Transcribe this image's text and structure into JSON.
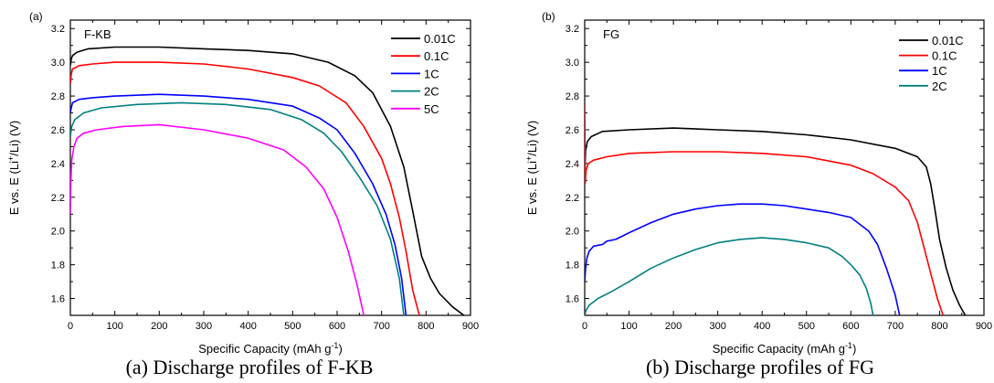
{
  "captions": [
    "(a) Discharge profiles of F-KB",
    "(b) Discharge profiles of FG"
  ],
  "chart_data": [
    {
      "type": "line",
      "panel_label": "(a)",
      "title": "F-KB",
      "xlabel": "Specific Capacity (mAh g",
      "xlabel_sup": "-1",
      "xlabel_end": ")",
      "ylabel": "E vs. E (Li",
      "ylabel_sup": "+",
      "ylabel_end": "/Li) (V)",
      "xlim": [
        0,
        900
      ],
      "ylim": [
        1.5,
        3.25
      ],
      "xticks": [
        0,
        100,
        200,
        300,
        400,
        500,
        600,
        700,
        800,
        900
      ],
      "yticks": [
        1.6,
        1.8,
        2.0,
        2.2,
        2.4,
        2.6,
        2.8,
        3.0,
        3.2
      ],
      "legend_position": "top-right",
      "grid": false,
      "series": [
        {
          "name": "0.01C",
          "color": "#000000",
          "x": [
            0,
            2,
            5,
            15,
            40,
            100,
            200,
            300,
            400,
            500,
            580,
            640,
            680,
            720,
            750,
            770,
            790,
            810,
            830,
            860,
            885
          ],
          "y": [
            2.98,
            3.02,
            3.04,
            3.06,
            3.08,
            3.09,
            3.09,
            3.08,
            3.07,
            3.05,
            3.0,
            2.92,
            2.82,
            2.62,
            2.38,
            2.12,
            1.85,
            1.72,
            1.63,
            1.55,
            1.5
          ]
        },
        {
          "name": "0.1C",
          "color": "#ff0000",
          "x": [
            0,
            2,
            5,
            20,
            50,
            100,
            200,
            300,
            400,
            500,
            560,
            620,
            660,
            700,
            720,
            740,
            755,
            770,
            785
          ],
          "y": [
            2.87,
            2.93,
            2.96,
            2.98,
            2.99,
            3.0,
            3.0,
            2.99,
            2.96,
            2.91,
            2.86,
            2.76,
            2.62,
            2.43,
            2.28,
            2.08,
            1.88,
            1.65,
            1.5
          ]
        },
        {
          "name": "1C",
          "color": "#0000ff",
          "x": [
            0,
            2,
            5,
            20,
            50,
            100,
            200,
            300,
            400,
            500,
            560,
            600,
            640,
            680,
            710,
            730,
            745,
            755
          ],
          "y": [
            2.7,
            2.73,
            2.76,
            2.78,
            2.79,
            2.8,
            2.81,
            2.8,
            2.78,
            2.74,
            2.67,
            2.6,
            2.46,
            2.28,
            2.1,
            1.92,
            1.72,
            1.5
          ]
        },
        {
          "name": "2C",
          "color": "#008080",
          "x": [
            0,
            3,
            10,
            30,
            70,
            150,
            250,
            350,
            450,
            520,
            570,
            610,
            650,
            690,
            720,
            740,
            750
          ],
          "y": [
            2.56,
            2.62,
            2.66,
            2.7,
            2.73,
            2.75,
            2.76,
            2.75,
            2.72,
            2.66,
            2.58,
            2.47,
            2.32,
            2.15,
            1.95,
            1.72,
            1.5
          ]
        },
        {
          "name": "5C",
          "color": "#ff00ff",
          "x": [
            0,
            1,
            3,
            8,
            15,
            30,
            60,
            120,
            200,
            300,
            400,
            480,
            530,
            570,
            600,
            625,
            645,
            660
          ],
          "y": [
            2.1,
            2.28,
            2.42,
            2.5,
            2.55,
            2.58,
            2.6,
            2.62,
            2.63,
            2.6,
            2.55,
            2.48,
            2.38,
            2.25,
            2.08,
            1.88,
            1.68,
            1.5
          ]
        }
      ]
    },
    {
      "type": "line",
      "panel_label": "(b)",
      "title": "FG",
      "xlabel": "Specific Capacity (mAh g",
      "xlabel_sup": "-1",
      "xlabel_end": ")",
      "ylabel": "E vs. E (Li",
      "ylabel_sup": "+",
      "ylabel_end": "/Li) (V)",
      "xlim": [
        0,
        900
      ],
      "ylim": [
        1.5,
        3.25
      ],
      "xticks": [
        0,
        100,
        200,
        300,
        400,
        500,
        600,
        700,
        800,
        900
      ],
      "yticks": [
        1.6,
        1.8,
        2.0,
        2.2,
        2.4,
        2.6,
        2.8,
        3.0,
        3.2
      ],
      "legend_position": "top-right",
      "grid": false,
      "series": [
        {
          "name": "0.01C",
          "color": "#000000",
          "x": [
            0,
            2,
            6,
            15,
            40,
            100,
            200,
            300,
            400,
            500,
            600,
            700,
            750,
            770,
            780,
            790,
            800,
            815,
            830,
            845,
            858
          ],
          "y": [
            2.33,
            2.48,
            2.53,
            2.56,
            2.59,
            2.6,
            2.61,
            2.6,
            2.59,
            2.57,
            2.54,
            2.49,
            2.44,
            2.38,
            2.28,
            2.12,
            1.95,
            1.78,
            1.65,
            1.56,
            1.5
          ]
        },
        {
          "name": "0.1C",
          "color": "#ff0000",
          "x": [
            0,
            1,
            3,
            8,
            20,
            50,
            100,
            200,
            300,
            400,
            500,
            600,
            650,
            700,
            730,
            750,
            765,
            780,
            795,
            808
          ],
          "y": [
            2.75,
            2.28,
            2.36,
            2.4,
            2.42,
            2.44,
            2.46,
            2.47,
            2.47,
            2.46,
            2.44,
            2.39,
            2.34,
            2.26,
            2.18,
            2.05,
            1.9,
            1.75,
            1.6,
            1.5
          ]
        },
        {
          "name": "1C",
          "color": "#0000ff",
          "x": [
            0,
            2,
            5,
            10,
            20,
            40,
            50,
            70,
            100,
            150,
            200,
            250,
            300,
            350,
            400,
            450,
            500,
            550,
            600,
            640,
            660,
            680,
            700,
            710
          ],
          "y": [
            1.7,
            1.78,
            1.84,
            1.88,
            1.91,
            1.92,
            1.94,
            1.95,
            1.99,
            2.05,
            2.1,
            2.13,
            2.15,
            2.16,
            2.16,
            2.15,
            2.13,
            2.11,
            2.08,
            2.0,
            1.92,
            1.78,
            1.62,
            1.5
          ]
        },
        {
          "name": "2C",
          "color": "#008080",
          "x": [
            0,
            3,
            10,
            30,
            60,
            100,
            150,
            200,
            250,
            300,
            350,
            400,
            450,
            500,
            550,
            580,
            600,
            620,
            635,
            645,
            650
          ],
          "y": [
            1.5,
            1.53,
            1.56,
            1.6,
            1.64,
            1.7,
            1.78,
            1.84,
            1.89,
            1.93,
            1.95,
            1.96,
            1.95,
            1.93,
            1.9,
            1.85,
            1.8,
            1.74,
            1.66,
            1.57,
            1.5
          ]
        }
      ]
    }
  ]
}
